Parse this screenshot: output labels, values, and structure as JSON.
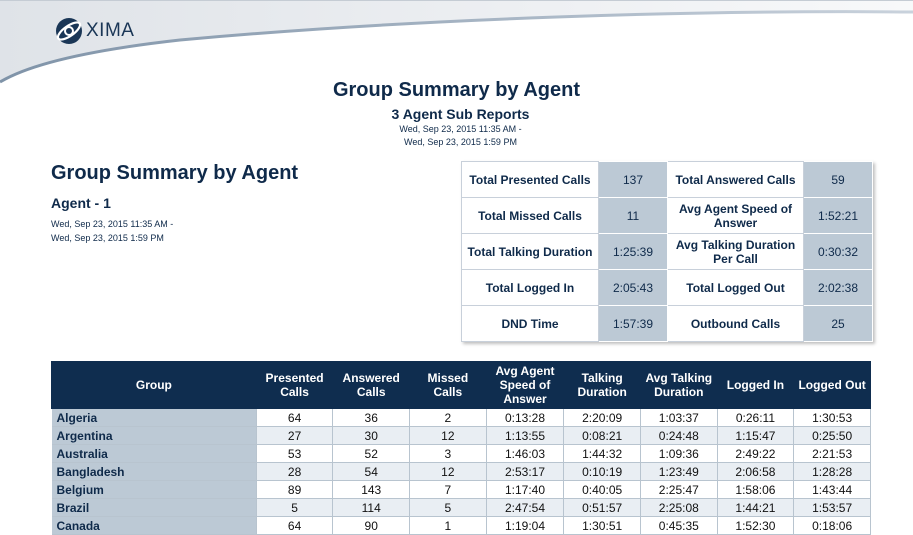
{
  "logo": {
    "brand": "XIMA"
  },
  "report": {
    "title": "Group Summary by Agent",
    "subtitle": "3 Agent Sub Reports",
    "date_start": "Wed, Sep 23, 2015 11:35 AM -",
    "date_end": "Wed, Sep 23, 2015 1:59 PM"
  },
  "section": {
    "title": "Group Summary by Agent",
    "agent": "Agent - 1",
    "date_start": "Wed, Sep 23, 2015 11:35 AM -",
    "date_end": "Wed, Sep 23, 2015 1:59 PM"
  },
  "summary": [
    {
      "label1": "Total Presented Calls",
      "value1": "137",
      "label2": "Total Answered Calls",
      "value2": "59"
    },
    {
      "label1": "Total Missed Calls",
      "value1": "11",
      "label2": "Avg Agent Speed of Answer",
      "value2": "1:52:21"
    },
    {
      "label1": "Total Talking Duration",
      "value1": "1:25:39",
      "label2": "Avg Talking Duration Per Call",
      "value2": "0:30:32"
    },
    {
      "label1": "Total Logged In",
      "value1": "2:05:43",
      "label2": "Total Logged Out",
      "value2": "2:02:38"
    },
    {
      "label1": "DND Time",
      "value1": "1:57:39",
      "label2": "Outbound Calls",
      "value2": "25"
    }
  ],
  "table": {
    "headers": [
      "Group",
      "Presented Calls",
      "Answered Calls",
      "Missed Calls",
      "Avg Agent Speed of Answer",
      "Talking Duration",
      "Avg Talking Duration",
      "Logged In",
      "Logged Out"
    ],
    "rows": [
      [
        "Algeria",
        "64",
        "36",
        "2",
        "0:13:28",
        "2:20:09",
        "1:03:37",
        "0:26:11",
        "1:30:53"
      ],
      [
        "Argentina",
        "27",
        "30",
        "12",
        "1:13:55",
        "0:08:21",
        "0:24:48",
        "1:15:47",
        "0:25:50"
      ],
      [
        "Australia",
        "53",
        "52",
        "3",
        "1:46:03",
        "1:44:32",
        "1:09:36",
        "2:49:22",
        "2:21:53"
      ],
      [
        "Bangladesh",
        "28",
        "54",
        "12",
        "2:53:17",
        "0:10:19",
        "1:23:49",
        "2:06:58",
        "1:28:28"
      ],
      [
        "Belgium",
        "89",
        "143",
        "7",
        "1:17:40",
        "0:40:05",
        "2:25:47",
        "1:58:06",
        "1:43:44"
      ],
      [
        "Brazil",
        "5",
        "114",
        "5",
        "2:47:54",
        "0:51:57",
        "2:25:08",
        "1:44:21",
        "1:53:57"
      ],
      [
        "Canada",
        "64",
        "90",
        "1",
        "1:19:04",
        "1:30:51",
        "0:45:35",
        "1:52:30",
        "0:18:06"
      ]
    ]
  }
}
